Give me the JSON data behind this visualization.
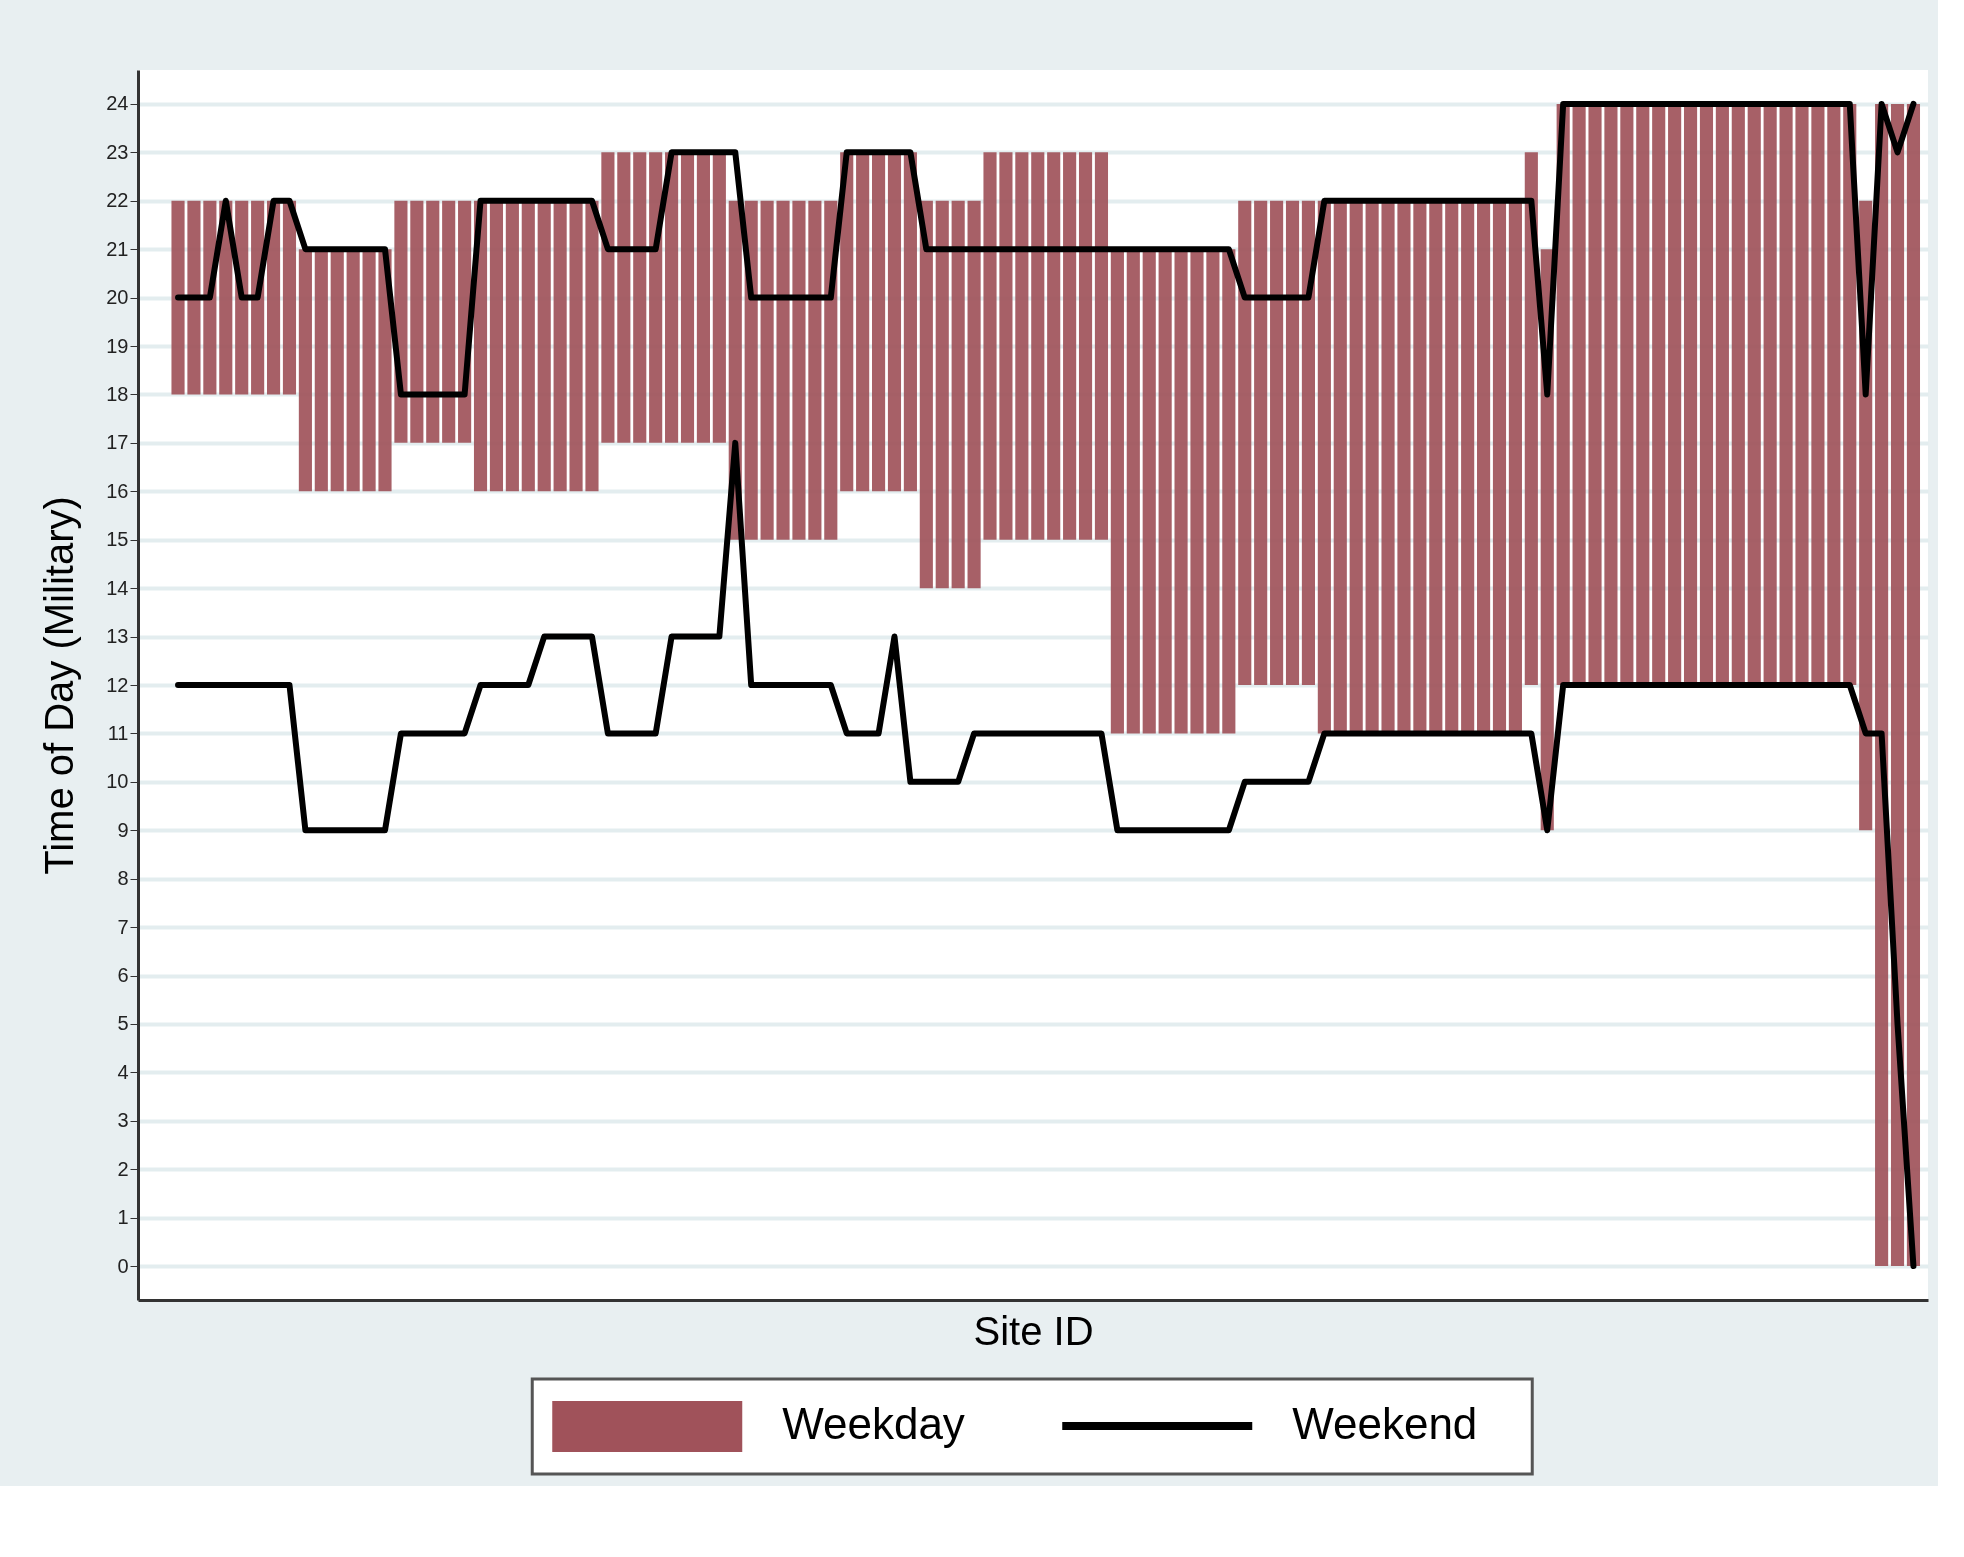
{
  "chart_data": {
    "type": "bar",
    "xlabel": "Site ID",
    "ylabel": "Time of Day (Military)",
    "categories": [
      null,
      null,
      null,
      null,
      null,
      null,
      null,
      null,
      null,
      null,
      null,
      null,
      null,
      null,
      null,
      null,
      null,
      null,
      null,
      null,
      null,
      null,
      null,
      null,
      null,
      null,
      null,
      null,
      null,
      null,
      null,
      null,
      null,
      null,
      null,
      null,
      null,
      null,
      null,
      null,
      null,
      null,
      null,
      null,
      null,
      null,
      null,
      null,
      null,
      null,
      null,
      null,
      null,
      null,
      null,
      null,
      null,
      null,
      null,
      null,
      null,
      null,
      null,
      null,
      null,
      null,
      null,
      null,
      null,
      null,
      null,
      null,
      null,
      null,
      null,
      null,
      null,
      null,
      null,
      null,
      null,
      null,
      null,
      null,
      null,
      null,
      null,
      null,
      null,
      null,
      null,
      null,
      null,
      null,
      null,
      null,
      null,
      null,
      null,
      null,
      null,
      null,
      null,
      null,
      null,
      null,
      null,
      null,
      null,
      null
    ],
    "series": [
      {
        "name": "Weekday",
        "color": "#a0525a",
        "base": [
          18,
          18,
          18,
          18,
          18,
          18,
          18,
          18,
          16,
          16,
          16,
          16,
          16,
          16,
          17,
          17,
          17,
          17,
          17,
          16,
          16,
          16,
          16,
          16,
          16,
          16,
          16,
          17,
          17,
          17,
          17,
          17,
          17,
          17,
          17,
          15,
          15,
          15,
          15,
          15,
          15,
          15,
          16,
          16,
          16,
          16,
          16,
          14,
          14,
          14,
          14,
          15,
          15,
          15,
          15,
          15,
          15,
          15,
          15,
          11,
          11,
          11,
          11,
          11,
          11,
          11,
          11,
          12,
          12,
          12,
          12,
          12,
          11,
          11,
          11,
          11,
          11,
          11,
          11,
          11,
          11,
          11,
          11,
          11,
          11,
          12,
          9,
          12,
          12,
          12,
          12,
          12,
          12,
          12,
          12,
          12,
          12,
          12,
          12,
          12,
          12,
          12,
          12,
          12,
          12,
          12,
          9,
          0,
          0,
          0
        ],
        "values": [
          4,
          4,
          4,
          4,
          4,
          4,
          4,
          4,
          5,
          5,
          5,
          5,
          5,
          5,
          5,
          5,
          5,
          5,
          5,
          6,
          6,
          6,
          6,
          6,
          6,
          6,
          6,
          6,
          6,
          6,
          6,
          6,
          6,
          6,
          6,
          7,
          7,
          7,
          7,
          7,
          7,
          7,
          7,
          7,
          7,
          7,
          7,
          8,
          8,
          8,
          8,
          8,
          8,
          8,
          8,
          8,
          8,
          8,
          8,
          10,
          10,
          10,
          10,
          10,
          10,
          10,
          10,
          10,
          10,
          10,
          10,
          10,
          11,
          11,
          11,
          11,
          11,
          11,
          11,
          11,
          11,
          11,
          11,
          11,
          11,
          11,
          12,
          12,
          12,
          12,
          12,
          12,
          12,
          12,
          12,
          12,
          12,
          12,
          12,
          12,
          12,
          12,
          12,
          12,
          12,
          12,
          13,
          24,
          24,
          24
        ]
      },
      {
        "name": "Weekend",
        "type": "line",
        "color": "#000000",
        "values": [
          20,
          20,
          20,
          22,
          20,
          20,
          22,
          22,
          21,
          21,
          21,
          21,
          21,
          21,
          18,
          18,
          18,
          18,
          18,
          22,
          22,
          22,
          22,
          22,
          22,
          22,
          22,
          21,
          21,
          21,
          21,
          23,
          23,
          23,
          23,
          23,
          20,
          20,
          20,
          20,
          20,
          20,
          23,
          23,
          23,
          23,
          23,
          21,
          21,
          21,
          21,
          21,
          21,
          21,
          21,
          21,
          21,
          21,
          21,
          21,
          21,
          21,
          21,
          21,
          21,
          21,
          21,
          20,
          20,
          20,
          20,
          20,
          22,
          22,
          22,
          22,
          22,
          22,
          22,
          22,
          22,
          22,
          22,
          22,
          22,
          22,
          18,
          24,
          24,
          24,
          24,
          24,
          24,
          24,
          24,
          24,
          24,
          24,
          24,
          24,
          24,
          24,
          24,
          24,
          24,
          24,
          18,
          24,
          23,
          24
        ]
      },
      {
        "type": "line",
        "color": "#000000",
        "values": [
          12,
          12,
          12,
          12,
          12,
          12,
          12,
          12,
          9,
          9,
          9,
          9,
          9,
          9,
          11,
          11,
          11,
          11,
          11,
          12,
          12,
          12,
          12,
          13,
          13,
          13,
          13,
          11,
          11,
          11,
          11,
          13,
          13,
          13,
          13,
          17,
          12,
          12,
          12,
          12,
          12,
          12,
          11,
          11,
          11,
          13,
          10,
          10,
          10,
          10,
          11,
          11,
          11,
          11,
          11,
          11,
          11,
          11,
          11,
          9,
          9,
          9,
          9,
          9,
          9,
          9,
          9,
          10,
          10,
          10,
          10,
          10,
          11,
          11,
          11,
          11,
          11,
          11,
          11,
          11,
          11,
          11,
          11,
          11,
          11,
          11,
          9,
          12,
          12,
          12,
          12,
          12,
          12,
          12,
          12,
          12,
          12,
          12,
          12,
          12,
          12,
          12,
          12,
          12,
          12,
          12,
          11,
          11,
          5,
          0
        ]
      }
    ],
    "ylim": [
      -0.7,
      24.7
    ],
    "yticks": [
      0,
      1,
      2,
      3,
      4,
      5,
      6,
      7,
      8,
      9,
      10,
      11,
      12,
      13,
      14,
      15,
      16,
      17,
      18,
      19,
      20,
      21,
      22,
      23,
      24
    ],
    "grid": "y",
    "legend": "bottom",
    "tick_labels": "y"
  }
}
